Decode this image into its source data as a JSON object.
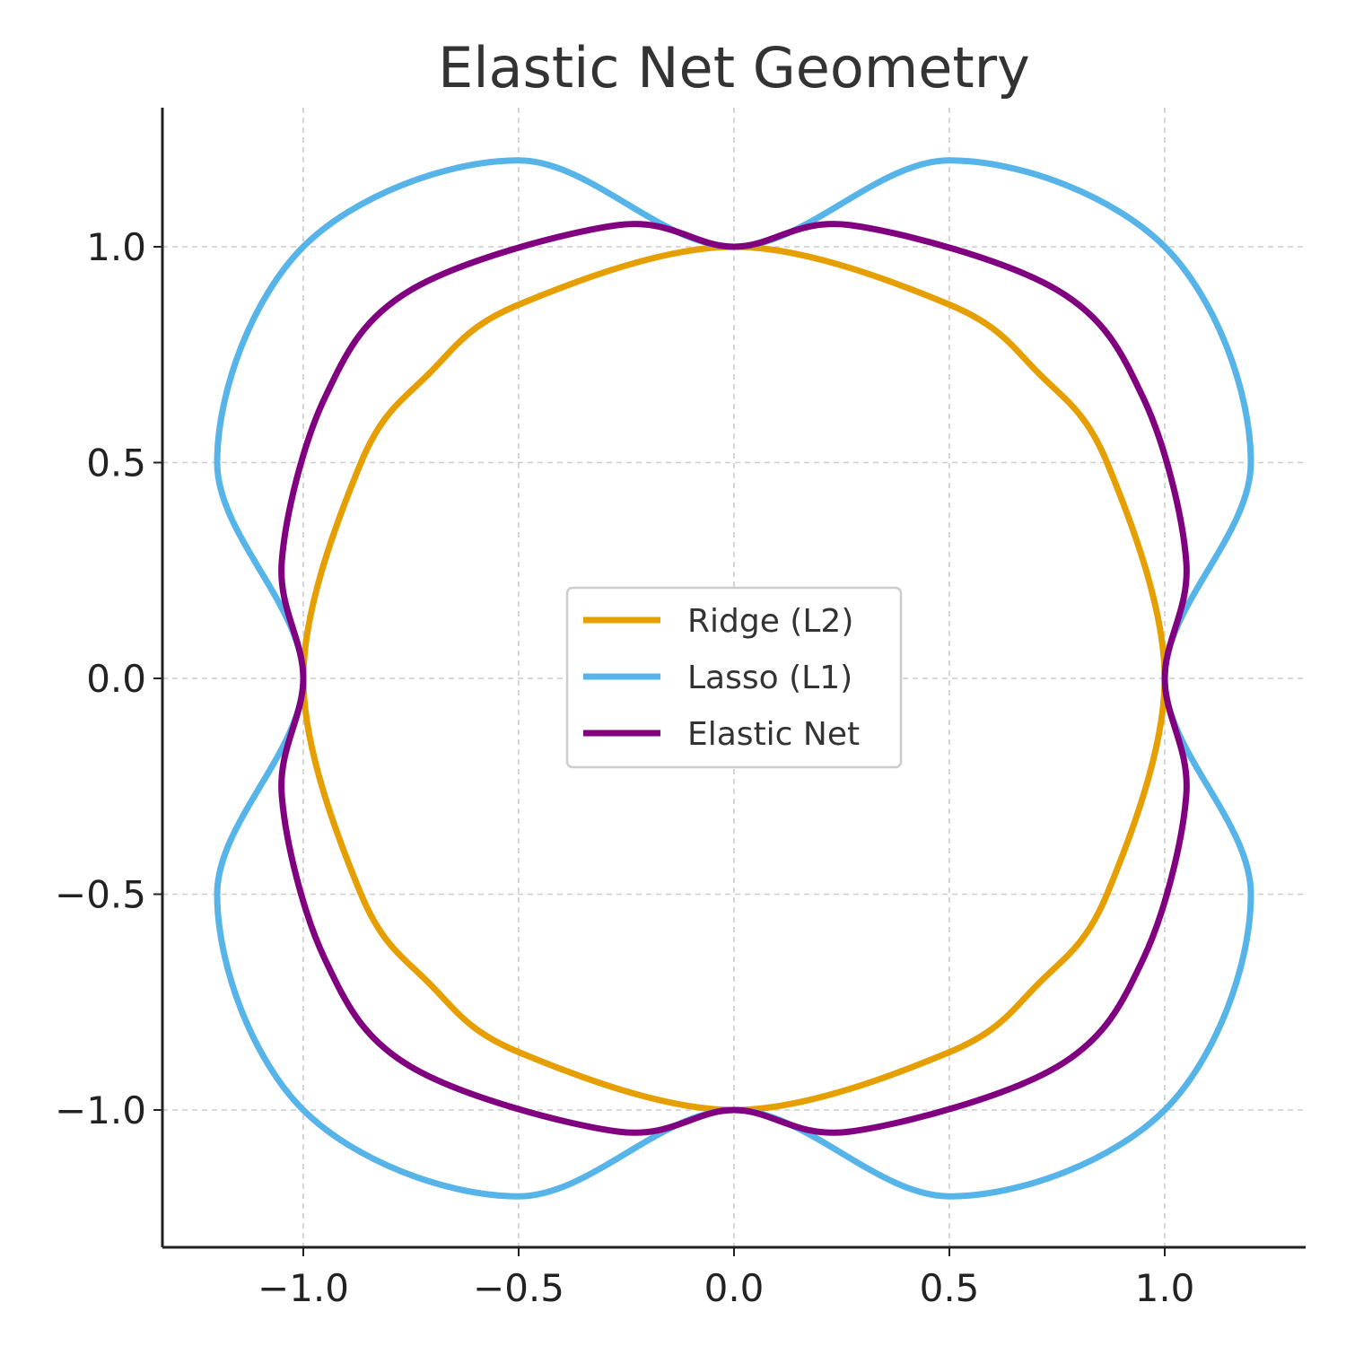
{
  "chart_data": {
    "type": "line",
    "title": "Elastic Net Geometry",
    "xlabel": "",
    "ylabel": "",
    "xlim": [
      -1.33,
      1.33
    ],
    "ylim": [
      -1.32,
      1.32
    ],
    "x_ticks": [
      -1.0,
      -0.5,
      0.0,
      0.5,
      1.0
    ],
    "y_ticks": [
      -1.0,
      -0.5,
      0.0,
      0.5,
      1.0
    ],
    "x_tick_labels": [
      "−1.0",
      "−0.5",
      "0.0",
      "0.5",
      "1.0"
    ],
    "y_tick_labels": [
      "−1.0",
      "−0.5",
      "0.0",
      "0.5",
      "1.0"
    ],
    "grid": true,
    "legend_position": "center",
    "series": [
      {
        "name": "Ridge (L2)",
        "color": "#E69F00",
        "points": [
          [
            1.0,
            0.0
          ],
          [
            0.866,
            0.5
          ],
          [
            0.707,
            0.707
          ],
          [
            0.5,
            0.866
          ],
          [
            0.0,
            1.0
          ],
          [
            -0.5,
            0.866
          ],
          [
            -0.707,
            0.707
          ],
          [
            -0.866,
            0.5
          ],
          [
            -1.0,
            0.0
          ],
          [
            -0.866,
            -0.5
          ],
          [
            -0.707,
            -0.707
          ],
          [
            -0.5,
            -0.866
          ],
          [
            0.0,
            -1.0
          ],
          [
            0.5,
            -0.866
          ],
          [
            0.707,
            -0.707
          ],
          [
            0.866,
            -0.5
          ]
        ]
      },
      {
        "name": "Lasso (L1)",
        "color": "#56B4E9",
        "points": [
          [
            1.0,
            0.0
          ],
          [
            1.2,
            0.5
          ],
          [
            1.0,
            1.0
          ],
          [
            0.5,
            1.2
          ],
          [
            0.0,
            1.0
          ],
          [
            -0.5,
            1.2
          ],
          [
            -1.0,
            1.0
          ],
          [
            -1.2,
            0.5
          ],
          [
            -1.0,
            0.0
          ],
          [
            -1.2,
            -0.5
          ],
          [
            -1.0,
            -1.0
          ],
          [
            -0.5,
            -1.2
          ],
          [
            0.0,
            -1.0
          ],
          [
            0.5,
            -1.2
          ],
          [
            1.0,
            -1.0
          ],
          [
            1.2,
            -0.5
          ]
        ]
      },
      {
        "name": "Elastic Net",
        "color": "#800080",
        "points": [
          [
            1.0,
            0.0
          ],
          [
            1.05,
            0.27
          ],
          [
            0.95,
            0.65
          ],
          [
            0.75,
            0.9
          ],
          [
            0.27,
            1.05
          ],
          [
            0.0,
            1.0
          ],
          [
            -0.27,
            1.05
          ],
          [
            -0.75,
            0.9
          ],
          [
            -0.95,
            0.65
          ],
          [
            -1.05,
            0.27
          ],
          [
            -1.0,
            0.0
          ],
          [
            -1.05,
            -0.27
          ],
          [
            -0.95,
            -0.65
          ],
          [
            -0.75,
            -0.9
          ],
          [
            -0.27,
            -1.05
          ],
          [
            0.0,
            -1.0
          ],
          [
            0.27,
            -1.05
          ],
          [
            0.75,
            -0.9
          ],
          [
            0.95,
            -0.65
          ],
          [
            1.05,
            -0.27
          ]
        ]
      }
    ]
  }
}
